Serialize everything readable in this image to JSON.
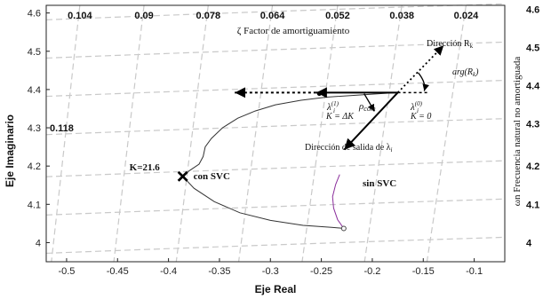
{
  "chart_data": {
    "type": "line",
    "xlabel": "Eje Real",
    "ylabel": "Eje Imaginario",
    "right_label": "ωn Frecuencia natural no amortiguada",
    "damping_label": "ζ Factor de amortiguamiento",
    "xlim": [
      -0.52,
      -0.07
    ],
    "ylim": [
      3.95,
      4.62
    ],
    "xticks": [
      -0.5,
      -0.45,
      -0.4,
      -0.35,
      -0.3,
      -0.25,
      -0.2,
      -0.15,
      -0.1
    ],
    "xtick_labels": [
      "-0.5",
      "-0.45",
      "-0.4",
      "-0.35",
      "-0.3",
      "-0.25",
      "-0.2",
      "-0.15",
      "-0.1"
    ],
    "yticks": [
      4.0,
      4.1,
      4.2,
      4.3,
      4.4,
      4.5,
      4.6
    ],
    "ytick_labels": [
      "4",
      "4.1",
      "4.2",
      "4.3",
      "4.4",
      "4.5",
      "4.6"
    ],
    "damping_ticks": [
      "0.104",
      "0.09",
      "0.078",
      "0.064",
      "0.052",
      "0.038",
      "0.024"
    ],
    "damping_tick_x": [
      -0.487,
      -0.424,
      -0.361,
      -0.298,
      -0.234,
      -0.171,
      -0.108
    ],
    "damping_left": {
      "label": "0.118",
      "y": 4.3
    },
    "wn_labels": [
      "4.6",
      "4.5",
      "4.4",
      "4.3",
      "4.2",
      "4.1",
      "4"
    ],
    "wn_label_y": [
      4.61,
      4.51,
      4.41,
      4.31,
      4.2,
      4.1,
      4.0
    ],
    "series": [
      {
        "name": "con SVC",
        "color": "#333333",
        "points": [
          [
            -0.175,
            4.392
          ],
          [
            -0.21,
            4.386
          ],
          [
            -0.245,
            4.38
          ],
          [
            -0.27,
            4.372
          ],
          [
            -0.295,
            4.36
          ],
          [
            -0.315,
            4.344
          ],
          [
            -0.332,
            4.325
          ],
          [
            -0.347,
            4.3
          ],
          [
            -0.358,
            4.272
          ],
          [
            -0.364,
            4.25
          ],
          [
            -0.366,
            4.225
          ],
          [
            -0.37,
            4.205
          ],
          [
            -0.38,
            4.187
          ],
          [
            -0.386,
            4.173
          ],
          [
            -0.375,
            4.142
          ],
          [
            -0.355,
            4.107
          ],
          [
            -0.33,
            4.078
          ],
          [
            -0.3,
            4.058
          ],
          [
            -0.268,
            4.045
          ],
          [
            -0.24,
            4.04
          ],
          [
            -0.227,
            4.037
          ]
        ]
      },
      {
        "name": "sin SVC",
        "color": "#8b2f9c",
        "points": [
          [
            -0.232,
            4.178
          ],
          [
            -0.236,
            4.152
          ],
          [
            -0.239,
            4.12
          ],
          [
            -0.238,
            4.09
          ],
          [
            -0.234,
            4.06
          ],
          [
            -0.228,
            4.037
          ]
        ]
      }
    ],
    "markers": [
      {
        "label": "K=21.6",
        "sublabel": "con SVC",
        "x": -0.386,
        "y": 4.173,
        "shape": "x"
      },
      {
        "x": -0.228,
        "y": 4.037,
        "shape": "circle"
      },
      {
        "x": -0.252,
        "y": 4.389,
        "shape": "dot"
      }
    ],
    "annotations": {
      "sin_svc": "sin SVC",
      "direccion_rk": "Dirección R",
      "direccion_rk_sub": "k",
      "arg_rk": "arg(R",
      "arg_rk_sub": "k",
      "arg_rk_close": ")",
      "rho": "ρ",
      "rho_sub": "com",
      "lambda1": "λ",
      "lambda1_sup": "(1)",
      "lambda1_sub": "i",
      "k_delta": "K = ΔK",
      "lambda0": "λ",
      "lambda0_sup": "(0)",
      "lambda0_sub": "i",
      "k_zero": "K = 0",
      "dir_salida": "Dirección de salida de λ",
      "dir_salida_sub": "i"
    }
  }
}
